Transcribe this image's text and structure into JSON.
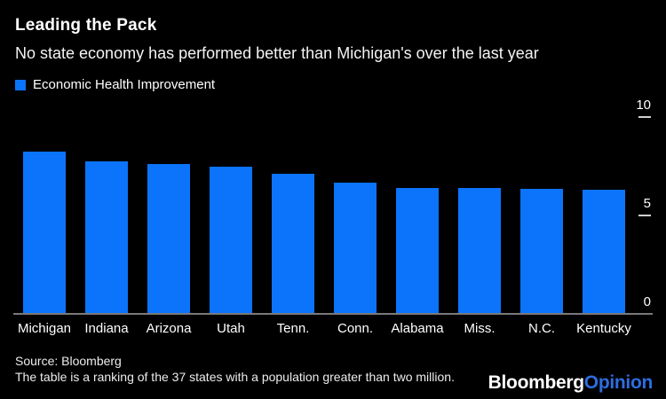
{
  "header": {
    "title": "Leading the Pack",
    "subtitle": "No state economy has performed better than Michigan's over the last year"
  },
  "legend": {
    "label": "Economic Health Improvement",
    "swatch_color": "#0b74fa"
  },
  "chart_data": {
    "type": "bar",
    "title": "Leading the Pack",
    "subtitle": "No state economy has performed better than Michigan's over the last year",
    "series_name": "Economic Health Improvement",
    "categories": [
      "Michigan",
      "Indiana",
      "Arizona",
      "Utah",
      "Tenn.",
      "Conn.",
      "Alabama",
      "Miss.",
      "N.C.",
      "Kentucky"
    ],
    "values": [
      8.2,
      7.7,
      7.55,
      7.45,
      7.05,
      6.6,
      6.35,
      6.35,
      6.3,
      6.25
    ],
    "xlabel": "",
    "ylabel": "",
    "ylim": [
      0,
      10
    ],
    "yticks": [
      10,
      5,
      0
    ],
    "axis_side": "right",
    "grid": false,
    "legend_position": "top-left",
    "bar_color": "#0b74fa",
    "background_color": "#000000"
  },
  "footer": {
    "source": "Source: Bloomberg",
    "note": "The table is a ranking of the 37 states with a population greater than two million.",
    "logo": {
      "part1": "Bloomberg",
      "part2": "Opinion",
      "part2_color": "#2e6de0"
    }
  },
  "colors": {
    "background": "#000000",
    "text": "#ffffff",
    "axis_line": "#7a7a7a",
    "tick_dash": "#cfcfcf",
    "bar": "#0b74fa"
  }
}
